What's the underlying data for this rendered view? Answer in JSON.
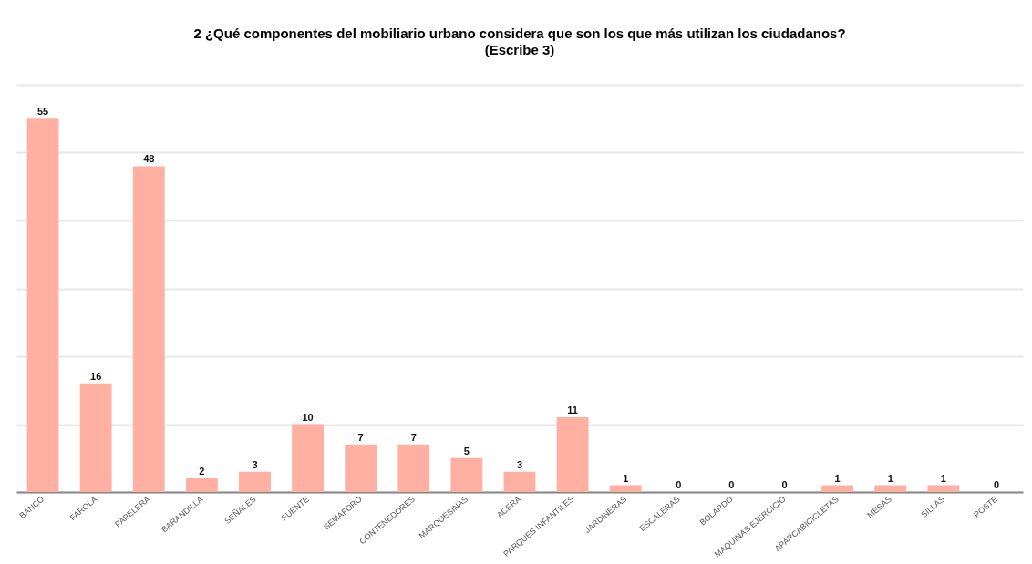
{
  "chart_data": {
    "type": "bar",
    "title": "2 ¿Qué componentes del mobiliario urbano considera que son los que más utilizan los ciudadanos?",
    "subtitle": "(Escribe 3)",
    "categories": [
      "BANCO",
      "FAROLA",
      "PAPELERA",
      "BARANDILLA",
      "SEÑALES",
      "FUENTE",
      "SEMAFORO",
      "CONTENEDORES",
      "MARQUESINAS",
      "ACERA",
      "PARQUES INFANTILES",
      "JARDINERAS",
      "ESCALERAS",
      "BOLARDO",
      "MAQUINAS EJERCICIO",
      "APARCABICICLETAS",
      "MESAS",
      "SILLAS",
      "POSTE"
    ],
    "values": [
      55,
      16,
      48,
      2,
      3,
      10,
      7,
      7,
      5,
      3,
      11,
      1,
      0,
      0,
      0,
      1,
      1,
      1,
      0
    ],
    "color": "#ffb0a3",
    "ylim": [
      0,
      60
    ],
    "yticks": [
      {
        "value": 0,
        "label": null
      },
      {
        "value": 10,
        "label": null
      },
      {
        "value": 20,
        "label": null
      },
      {
        "value": 30,
        "label": null
      },
      {
        "value": 40,
        "label": null
      },
      {
        "value": 50,
        "label": null
      },
      {
        "value": 60,
        "label": null
      }
    ],
    "grid": "y",
    "tick_labels": "x",
    "data_labels": true
  }
}
